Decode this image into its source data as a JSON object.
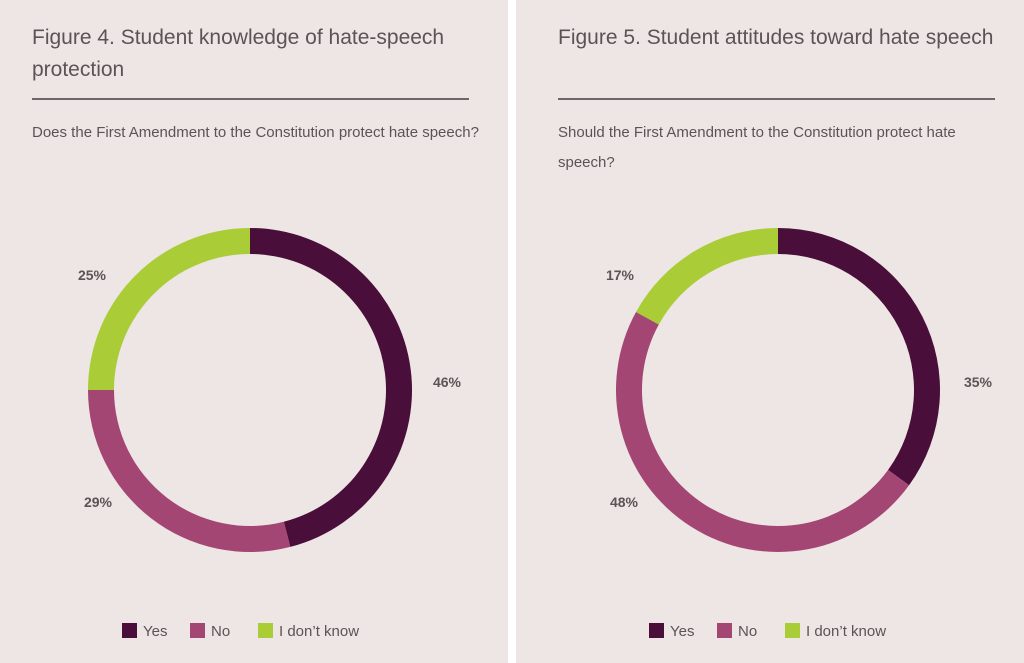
{
  "colors": {
    "yes": "#490e3a",
    "no": "#a44673",
    "dont_know": "#a9cc37"
  },
  "figures": [
    {
      "title": "Figure 4. Student knowledge of hate-speech protection",
      "question": "Does the First Amendment to the Constitution protect hate speech?",
      "legend": [
        "Yes",
        "No",
        "I don’t know"
      ]
    },
    {
      "title": "Figure 5. Student attitudes toward hate speech",
      "question": "Should the First Amendment to the Constitution protect hate speech?",
      "legend": [
        "Yes",
        "No",
        "I don’t know"
      ]
    }
  ],
  "chart_data": [
    {
      "type": "pie",
      "title": "Figure 4. Student knowledge of hate-speech protection",
      "categories": [
        "Yes",
        "No",
        "I don’t know"
      ],
      "values": [
        46,
        29,
        25
      ],
      "labels": [
        "46%",
        "29%",
        "25%"
      ],
      "donut": true,
      "legend_position": "bottom"
    },
    {
      "type": "pie",
      "title": "Figure 5. Student attitudes toward hate speech",
      "categories": [
        "Yes",
        "No",
        "I don’t know"
      ],
      "values": [
        35,
        48,
        17
      ],
      "labels": [
        "35%",
        "48%",
        "17%"
      ],
      "donut": true,
      "legend_position": "bottom"
    }
  ]
}
